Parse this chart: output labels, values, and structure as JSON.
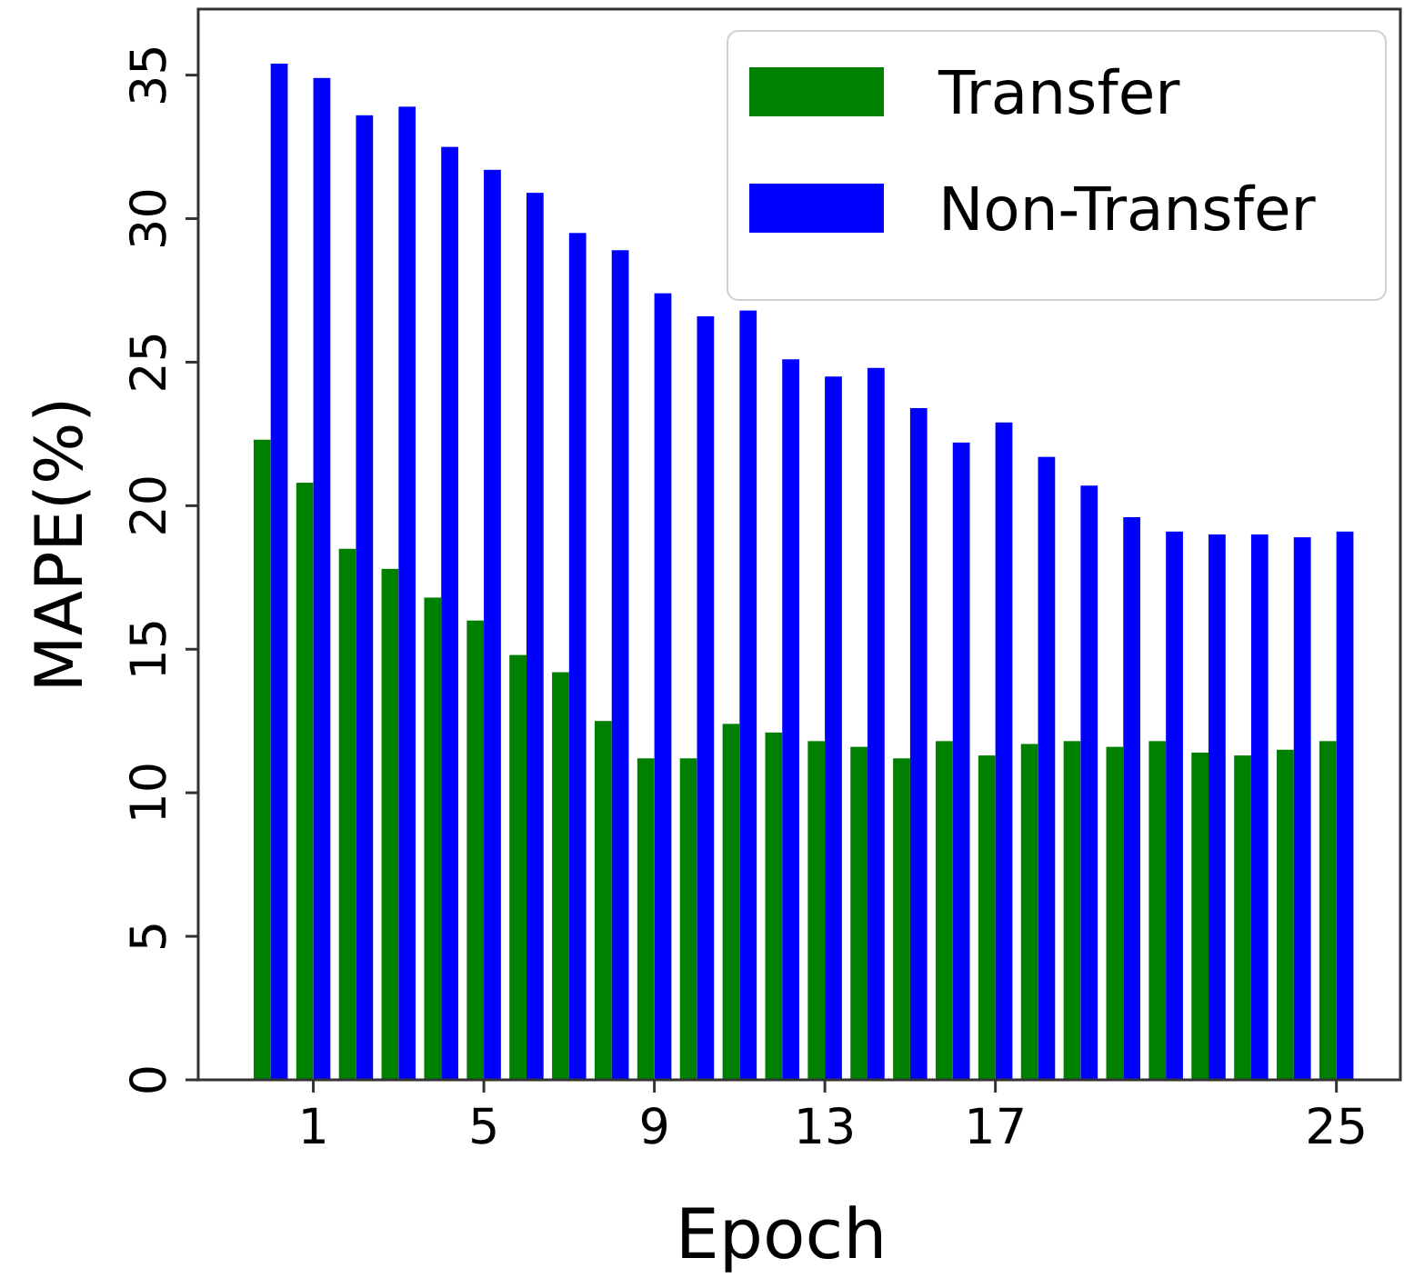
{
  "chart_data": {
    "type": "bar",
    "xlabel": "Epoch",
    "ylabel": "MAPE(%)",
    "x": [
      0,
      1,
      2,
      3,
      4,
      5,
      6,
      7,
      8,
      9,
      10,
      11,
      12,
      13,
      14,
      15,
      16,
      17,
      18,
      19,
      20,
      21,
      22,
      23,
      24,
      25
    ],
    "series": [
      {
        "name": "Transfer",
        "color": "#008000",
        "values": [
          22.3,
          20.8,
          18.5,
          17.8,
          16.8,
          16.0,
          14.8,
          14.2,
          12.5,
          11.2,
          11.2,
          12.4,
          12.1,
          11.8,
          11.6,
          11.2,
          11.8,
          11.3,
          11.7,
          11.8,
          11.6,
          11.8,
          11.4,
          11.3,
          11.5,
          11.8
        ]
      },
      {
        "name": "Non-Transfer",
        "color": "#0000ff",
        "values": [
          35.4,
          34.9,
          33.6,
          33.9,
          32.5,
          31.7,
          30.9,
          29.5,
          28.9,
          27.4,
          26.6,
          26.8,
          25.1,
          24.5,
          24.8,
          23.4,
          22.2,
          22.9,
          21.7,
          20.7,
          19.6,
          19.1,
          19.0,
          19.0,
          18.9,
          19.1
        ]
      }
    ],
    "xlim": [
      -1.7,
      26.5
    ],
    "xticks": [
      1,
      5,
      9,
      13,
      17,
      25
    ],
    "ylim": [
      0,
      37.3
    ],
    "yticks": [
      0,
      5,
      10,
      15,
      20,
      25,
      30,
      35
    ],
    "legend": "top right",
    "grid": false
  }
}
